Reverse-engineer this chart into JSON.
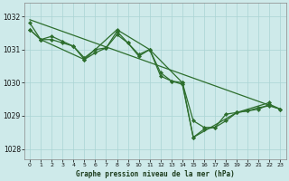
{
  "background_color": "#ceeaea",
  "grid_color": "#aad4d4",
  "line_color": "#2d6e2d",
  "marker_color": "#2d6e2d",
  "title": "Graphe pression niveau de la mer (hPa)",
  "ylim": [
    1027.7,
    1032.4
  ],
  "xlim": [
    -0.5,
    23.5
  ],
  "yticks": [
    1028,
    1029,
    1030,
    1031,
    1032
  ],
  "xticks": [
    0,
    1,
    2,
    3,
    4,
    5,
    6,
    7,
    8,
    9,
    10,
    11,
    12,
    13,
    14,
    15,
    16,
    17,
    18,
    19,
    20,
    21,
    22,
    23
  ],
  "series": [
    {
      "x": [
        0,
        1,
        2,
        3,
        4,
        5,
        6,
        7,
        8,
        9,
        10,
        11,
        12,
        13,
        14,
        15,
        16,
        17,
        18,
        19,
        20,
        21,
        22,
        23
      ],
      "y": [
        1031.6,
        1031.3,
        1031.4,
        1031.25,
        1031.1,
        1030.75,
        1031.0,
        1031.05,
        1031.55,
        1031.2,
        1030.85,
        1031.0,
        1030.3,
        1030.05,
        1029.95,
        1028.35,
        1028.6,
        1028.65,
        1028.85,
        1029.1,
        1029.15,
        1029.2,
        1029.35,
        1029.2
      ],
      "marker": true
    },
    {
      "x": [
        0,
        1,
        2,
        3,
        4,
        5,
        6,
        7,
        8,
        9,
        10,
        11,
        12,
        13,
        14,
        15,
        16,
        17,
        18,
        19,
        20,
        21,
        22,
        23
      ],
      "y": [
        1031.6,
        1031.3,
        1031.3,
        1031.2,
        1031.1,
        1030.7,
        1030.9,
        1031.05,
        1031.45,
        1031.2,
        1030.8,
        1031.0,
        1030.2,
        1030.05,
        1030.0,
        1028.85,
        1028.65,
        1028.65,
        1029.05,
        1029.1,
        1029.15,
        1029.25,
        1029.3,
        1029.2
      ],
      "marker": true
    },
    {
      "x": [
        0,
        1,
        5,
        8,
        11,
        14,
        15,
        19,
        22
      ],
      "y": [
        1031.8,
        1031.3,
        1030.7,
        1031.6,
        1031.0,
        1030.0,
        1028.35,
        1029.1,
        1029.4
      ],
      "marker": true
    },
    {
      "x": [
        0,
        23
      ],
      "y": [
        1031.9,
        1029.2
      ],
      "marker": false
    }
  ]
}
